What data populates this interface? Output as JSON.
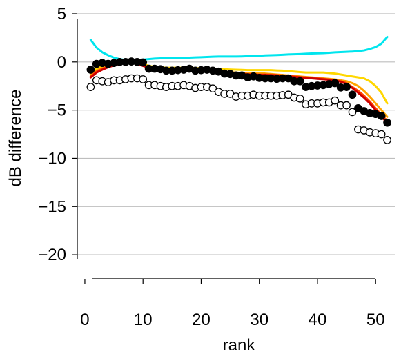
{
  "chart_data": {
    "type": "line",
    "title": "",
    "xlabel": "rank",
    "ylabel": "dB difference",
    "xlim": [
      -1.3,
      53.3
    ],
    "ylim": [
      -22.5,
      5.5
    ],
    "xticks": [
      0,
      10,
      20,
      30,
      40,
      50
    ],
    "yticks": [
      5,
      0,
      -5,
      -10,
      -15,
      -20
    ],
    "xtick_labels": [
      "0",
      "10",
      "20",
      "30",
      "40",
      "50"
    ],
    "ytick_labels": [
      "5",
      "0",
      "−5",
      "−10",
      "−15",
      "−20"
    ],
    "grid": "horizontal",
    "box": "left-bottom",
    "series": [
      {
        "kind": "line",
        "color": "#00e5ee",
        "values": [
          2.3,
          1.5,
          1.0,
          0.7,
          0.45,
          0.3,
          0.2,
          0.15,
          0.2,
          0.25,
          0.3,
          0.35,
          0.38,
          0.4,
          0.4,
          0.4,
          0.42,
          0.45,
          0.48,
          0.5,
          0.52,
          0.55,
          0.57,
          0.57,
          0.57,
          0.57,
          0.58,
          0.6,
          0.62,
          0.65,
          0.68,
          0.7,
          0.72,
          0.75,
          0.78,
          0.8,
          0.82,
          0.85,
          0.88,
          0.9,
          0.92,
          0.95,
          1.0,
          1.02,
          1.05,
          1.08,
          1.12,
          1.2,
          1.35,
          1.55,
          1.9,
          2.6
        ]
      },
      {
        "kind": "line",
        "color": "#ffd700",
        "values": [
          -1.0,
          -0.7,
          -0.4,
          -0.2,
          -0.1,
          0.0,
          0.05,
          0.05,
          -0.05,
          -0.2,
          -0.4,
          -0.5,
          -0.55,
          -0.6,
          -0.6,
          -0.6,
          -0.6,
          -0.6,
          -0.62,
          -0.65,
          -0.68,
          -0.7,
          -0.72,
          -0.75,
          -0.78,
          -0.8,
          -0.82,
          -0.85,
          -0.85,
          -0.85,
          -0.85,
          -0.85,
          -0.88,
          -0.9,
          -0.95,
          -1.0,
          -1.05,
          -1.1,
          -1.1,
          -1.1,
          -1.1,
          -1.15,
          -1.2,
          -1.3,
          -1.4,
          -1.5,
          -1.6,
          -1.7,
          -2.0,
          -2.5,
          -3.2,
          -4.3
        ]
      },
      {
        "kind": "line",
        "color": "#ffa500",
        "values": [
          -1.3,
          -0.9,
          -0.6,
          -0.4,
          -0.2,
          -0.1,
          0.0,
          0.0,
          -0.1,
          -0.3,
          -0.5,
          -0.6,
          -0.7,
          -0.75,
          -0.8,
          -0.8,
          -0.8,
          -0.82,
          -0.85,
          -0.88,
          -0.9,
          -0.92,
          -0.95,
          -1.0,
          -1.05,
          -1.1,
          -1.15,
          -1.2,
          -1.2,
          -1.2,
          -1.2,
          -1.25,
          -1.3,
          -1.35,
          -1.4,
          -1.45,
          -1.5,
          -1.55,
          -1.6,
          -1.65,
          -1.7,
          -1.75,
          -1.8,
          -1.9,
          -2.0,
          -2.2,
          -2.5,
          -3.0,
          -3.6,
          -4.3,
          -5.0,
          -5.7
        ]
      },
      {
        "kind": "line",
        "color": "#ff4500",
        "values": [
          -1.5,
          -1.0,
          -0.7,
          -0.5,
          -0.3,
          -0.15,
          -0.05,
          -0.05,
          -0.15,
          -0.35,
          -0.55,
          -0.65,
          -0.72,
          -0.78,
          -0.82,
          -0.85,
          -0.85,
          -0.88,
          -0.9,
          -0.92,
          -0.95,
          -0.98,
          -1.0,
          -1.05,
          -1.1,
          -1.15,
          -1.2,
          -1.25,
          -1.28,
          -1.3,
          -1.3,
          -1.32,
          -1.35,
          -1.4,
          -1.45,
          -1.5,
          -1.55,
          -1.6,
          -1.65,
          -1.7,
          -1.75,
          -1.8,
          -1.9,
          -2.0,
          -2.2,
          -2.6,
          -3.0,
          -3.5,
          -4.1,
          -4.8,
          -5.5,
          -6.1
        ]
      },
      {
        "kind": "line",
        "color": "#cd0000",
        "values": [
          -1.6,
          -1.1,
          -0.8,
          -0.55,
          -0.35,
          -0.2,
          -0.1,
          -0.1,
          -0.2,
          -0.4,
          -0.6,
          -0.7,
          -0.78,
          -0.82,
          -0.86,
          -0.88,
          -0.9,
          -0.92,
          -0.95,
          -0.98,
          -1.0,
          -1.02,
          -1.05,
          -1.1,
          -1.15,
          -1.2,
          -1.25,
          -1.3,
          -1.32,
          -1.35,
          -1.35,
          -1.38,
          -1.4,
          -1.45,
          -1.5,
          -1.55,
          -1.6,
          -1.65,
          -1.7,
          -1.75,
          -1.8,
          -1.85,
          -1.95,
          -2.05,
          -2.3,
          -2.7,
          -3.2,
          -3.7,
          -4.3,
          -5.0,
          -5.7,
          -6.3
        ]
      },
      {
        "kind": "points-filled",
        "color": "#000000",
        "values": [
          -0.8,
          -0.2,
          -0.1,
          -0.2,
          -0.1,
          0.0,
          0.0,
          0.05,
          0.0,
          -0.05,
          -0.7,
          -0.7,
          -0.75,
          -0.9,
          -0.9,
          -0.85,
          -0.8,
          -0.7,
          -0.9,
          -0.85,
          -0.8,
          -0.9,
          -1.0,
          -1.2,
          -1.25,
          -1.4,
          -1.4,
          -1.6,
          -1.5,
          -1.65,
          -1.7,
          -1.7,
          -1.75,
          -1.7,
          -1.7,
          -2.0,
          -2.0,
          -2.6,
          -2.5,
          -2.45,
          -2.4,
          -2.3,
          -2.2,
          -2.65,
          -2.6,
          -3.4,
          -4.8,
          -5.1,
          -5.3,
          -5.4,
          -5.6,
          -6.3
        ]
      },
      {
        "kind": "points-open",
        "color": "#000000",
        "values": [
          -2.6,
          -1.9,
          -2.0,
          -2.1,
          -1.9,
          -1.9,
          -1.8,
          -1.7,
          -1.7,
          -1.8,
          -2.4,
          -2.4,
          -2.5,
          -2.6,
          -2.5,
          -2.5,
          -2.4,
          -2.5,
          -2.7,
          -2.6,
          -2.6,
          -2.75,
          -3.1,
          -3.3,
          -3.3,
          -3.6,
          -3.5,
          -3.5,
          -3.4,
          -3.5,
          -3.5,
          -3.5,
          -3.5,
          -3.45,
          -3.4,
          -3.7,
          -3.8,
          -4.4,
          -4.3,
          -4.3,
          -4.2,
          -4.2,
          -4.0,
          -4.5,
          -4.5,
          -5.2,
          -7.0,
          -7.1,
          -7.3,
          -7.4,
          -7.5,
          -8.1
        ]
      }
    ]
  }
}
